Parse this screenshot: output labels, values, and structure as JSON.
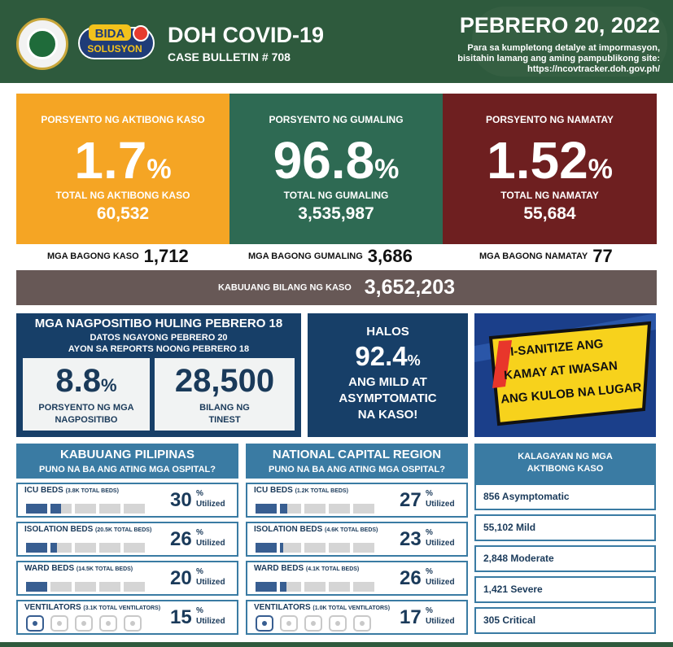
{
  "header": {
    "bida_logo_text": "BIDA",
    "bida_logo_sub": "SOLUSYON",
    "title": "DOH COVID-19",
    "bulletin": "CASE BULLETIN # 708",
    "date": "PEBRERO 20, 2022",
    "info_line1": "Para sa kumpletong detalye at impormasyon,",
    "info_line2": "bisitahin lamang ang aming pampublikong site:",
    "info_url": "https://ncovtracker.doh.gov.ph/"
  },
  "active": {
    "label": "PORSYENTO NG AKTIBONG KASO",
    "percent": "1.7",
    "pct_sign": "%",
    "total_label": "TOTAL NG AKTIBONG KASO",
    "total": "60,532",
    "color": "#f5a524"
  },
  "recovered": {
    "label": "PORSYENTO NG GUMALING",
    "percent": "96.8",
    "pct_sign": "%",
    "total_label": "TOTAL NG GUMALING",
    "total": "3,535,987",
    "color": "#2e6a53"
  },
  "deaths": {
    "label": "PORSYENTO NG NAMATAY",
    "percent": "1.52",
    "pct_sign": "%",
    "total_label": "TOTAL NG NAMATAY",
    "total": "55,684",
    "color": "#6e1f20"
  },
  "new_counts": {
    "cases_label": "MGA BAGONG KASO",
    "cases": "1,712",
    "recovered_label": "MGA BAGONG GUMALING",
    "recovered": "3,686",
    "deaths_label": "MGA BAGONG NAMATAY",
    "deaths": "77"
  },
  "total_cases": {
    "label": "KABUUANG BILANG NG KASO",
    "value": "3,652,203"
  },
  "positivity": {
    "title": "MGA NAGPOSITIBO HULING PEBRERO 18",
    "sub1": "DATOS NGAYONG PEBRERO 20",
    "sub2": "AYON SA REPORTS NOONG PEBRERO 18",
    "rate": "8.8",
    "rate_sign": "%",
    "rate_label1": "PORSYENTO NG MGA",
    "rate_label2": "NAGPOSITIBO",
    "tested": "28,500",
    "tested_label1": "BILANG NG",
    "tested_label2": "TINEST"
  },
  "mild": {
    "line1": "HALOS",
    "value": "92.4",
    "sign": "%",
    "line2": "ANG MILD AT",
    "line3": "ASYMPTOMATIC",
    "line4": "NA KASO!"
  },
  "sanitize": {
    "line1": "I-SANITIZE ANG",
    "line2": "KAMAY AT IWASAN",
    "line3": "ANG KULOB NA LUGAR"
  },
  "philippines": {
    "title": "KABUUANG PILIPINAS",
    "subtitle": "PUNO NA BA ANG ATING MGA OSPITAL?",
    "rows": [
      {
        "name": "ICU BEDS",
        "cap": "(3.8K TOTAL BEDS)",
        "value": "30",
        "fill": 0.3
      },
      {
        "name": "ISOLATION BEDS",
        "cap": "(20.5K TOTAL BEDS)",
        "value": "26",
        "fill": 0.26
      },
      {
        "name": "WARD BEDS",
        "cap": "(14.5K TOTAL BEDS)",
        "value": "20",
        "fill": 0.2
      },
      {
        "name": "VENTILATORS",
        "cap": "(3.1K TOTAL VENTILATORS)",
        "value": "15",
        "fill": 0.15
      }
    ]
  },
  "ncr": {
    "title": "NATIONAL CAPITAL REGION",
    "subtitle": "PUNO NA BA ANG ATING MGA OSPITAL?",
    "rows": [
      {
        "name": "ICU BEDS",
        "cap": "(1.2K TOTAL BEDS)",
        "value": "27",
        "fill": 0.27
      },
      {
        "name": "ISOLATION BEDS",
        "cap": "(4.6K TOTAL BEDS)",
        "value": "23",
        "fill": 0.23
      },
      {
        "name": "WARD BEDS",
        "cap": "(4.1K TOTAL BEDS)",
        "value": "26",
        "fill": 0.26
      },
      {
        "name": "VENTILATORS",
        "cap": "(1.0K TOTAL VENTILATORS)",
        "value": "17",
        "fill": 0.17
      }
    ]
  },
  "utilized": {
    "pct": "%",
    "label": "Utilized"
  },
  "status": {
    "title1": "KALAGAYAN NG MGA",
    "title2": "AKTIBONG KASO",
    "items": [
      "856 Asymptomatic",
      "55,102 Mild",
      "2,848 Moderate",
      "1,421 Severe",
      "305 Critical"
    ]
  }
}
